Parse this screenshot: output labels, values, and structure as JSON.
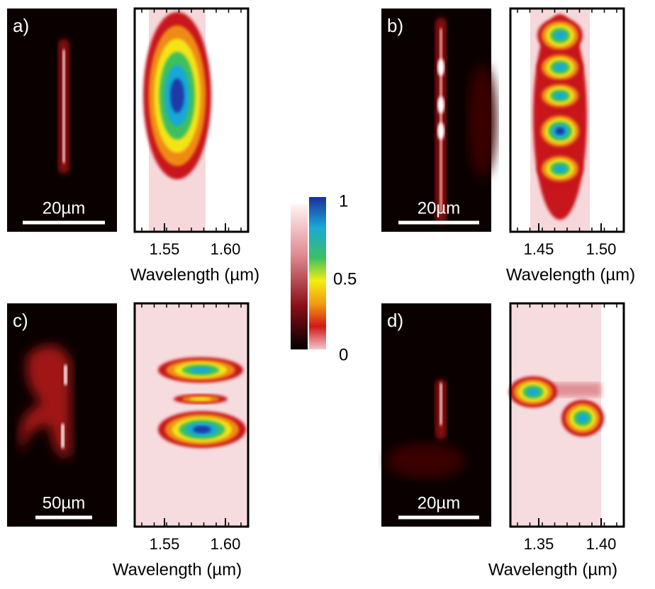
{
  "panels": [
    {
      "label": "a)",
      "scale_bar": "20µm",
      "ticks": [
        "1.55",
        "1.60"
      ],
      "xlabel": "Wavelength (µm)"
    },
    {
      "label": "b)",
      "scale_bar": "20µm",
      "ticks": [
        "1.45",
        "1.50"
      ],
      "xlabel": "Wavelength (µm)"
    },
    {
      "label": "c)",
      "scale_bar": "50µm",
      "ticks": [
        "1.55",
        "1.60"
      ],
      "xlabel": "Wavelength (µm)"
    },
    {
      "label": "d)",
      "scale_bar": "20µm",
      "ticks": [
        "1.35",
        "1.40"
      ],
      "xlabel": "Wavelength (µm)"
    }
  ],
  "colorbar": {
    "labels": [
      "1",
      "0.5",
      "0"
    ]
  }
}
